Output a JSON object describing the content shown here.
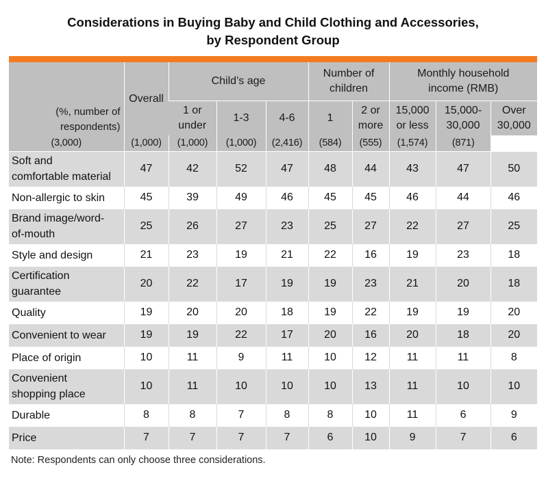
{
  "title": {
    "line1": "Considerations in Buying Baby and Child Clothing and Accessories,",
    "line2": "by Respondent Group"
  },
  "chart_data": {
    "type": "table",
    "corner_label": [
      "(%, number of",
      "respondents)"
    ],
    "groups": {
      "overall": "Overall",
      "childs_age": "Child’s age",
      "number_of_children": [
        "Number of",
        "children"
      ],
      "income": [
        "Monthly household",
        "income (RMB)"
      ]
    },
    "subheaders": [
      [
        "1 or",
        "under"
      ],
      [
        "1-3"
      ],
      [
        "4-6"
      ],
      [
        "1"
      ],
      [
        "2 or",
        "more"
      ],
      [
        "15,000",
        "or less"
      ],
      [
        "15,000-",
        "30,000"
      ],
      [
        "Over",
        "30,000"
      ]
    ],
    "respondent_counts": [
      "(3,000)",
      "(1,000)",
      "(1,000)",
      "(1,000)",
      "(2,416)",
      "(584)",
      "(555)",
      "(1,574)",
      "(871)"
    ],
    "rows": [
      {
        "label": [
          "Soft and",
          "comfortable material"
        ],
        "values": [
          47,
          42,
          52,
          47,
          48,
          44,
          43,
          47,
          50
        ]
      },
      {
        "label": [
          "Non-allergic to skin"
        ],
        "values": [
          45,
          39,
          49,
          46,
          45,
          45,
          46,
          44,
          46
        ]
      },
      {
        "label": [
          "Brand image/word-",
          "of-mouth"
        ],
        "values": [
          25,
          26,
          27,
          23,
          25,
          27,
          22,
          27,
          25
        ]
      },
      {
        "label": [
          "Style and design"
        ],
        "values": [
          21,
          23,
          19,
          21,
          22,
          16,
          19,
          23,
          18
        ]
      },
      {
        "label": [
          "Certification",
          "guarantee"
        ],
        "values": [
          20,
          22,
          17,
          19,
          19,
          23,
          21,
          20,
          18
        ]
      },
      {
        "label": [
          "Quality"
        ],
        "values": [
          19,
          20,
          20,
          18,
          19,
          22,
          19,
          19,
          20
        ]
      },
      {
        "label": [
          "Convenient to wear"
        ],
        "values": [
          19,
          19,
          22,
          17,
          20,
          16,
          20,
          18,
          20
        ]
      },
      {
        "label": [
          "Place of origin"
        ],
        "values": [
          10,
          11,
          9,
          11,
          10,
          12,
          11,
          11,
          8
        ]
      },
      {
        "label": [
          "Convenient",
          "shopping place"
        ],
        "values": [
          10,
          11,
          10,
          10,
          10,
          13,
          11,
          10,
          10
        ]
      },
      {
        "label": [
          "Durable"
        ],
        "values": [
          8,
          8,
          7,
          8,
          8,
          10,
          11,
          6,
          9
        ]
      },
      {
        "label": [
          "Price"
        ],
        "values": [
          7,
          7,
          7,
          7,
          6,
          10,
          9,
          7,
          6
        ]
      }
    ]
  },
  "note": "Note: Respondents can only choose three considerations.",
  "colors": {
    "accent_bar": "#f47b20",
    "header_bg": "#bfbfbf",
    "row_shade": "#d9d9d9"
  }
}
